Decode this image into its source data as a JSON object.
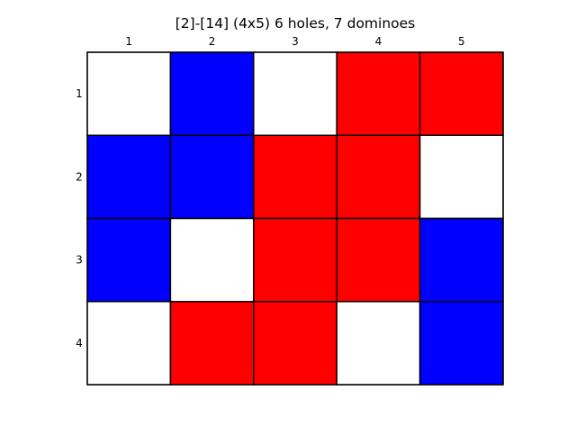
{
  "title": "[2]-[14]  (4x5) 6 holes, 7 dominoes",
  "column_labels": [
    "1",
    "2",
    "3",
    "4",
    "5"
  ],
  "row_labels": [
    "1",
    "2",
    "3",
    "4"
  ],
  "colors": {
    "blue": "#0000ff",
    "red": "#ff0000",
    "white": "#ffffff",
    "grid_line": "#000000"
  },
  "grid": [
    [
      "white",
      "blue",
      "white",
      "red",
      "red"
    ],
    [
      "blue",
      "blue",
      "red",
      "red",
      "white"
    ],
    [
      "blue",
      "white",
      "red",
      "red",
      "blue"
    ],
    [
      "white",
      "red",
      "red",
      "white",
      "blue"
    ]
  ]
}
